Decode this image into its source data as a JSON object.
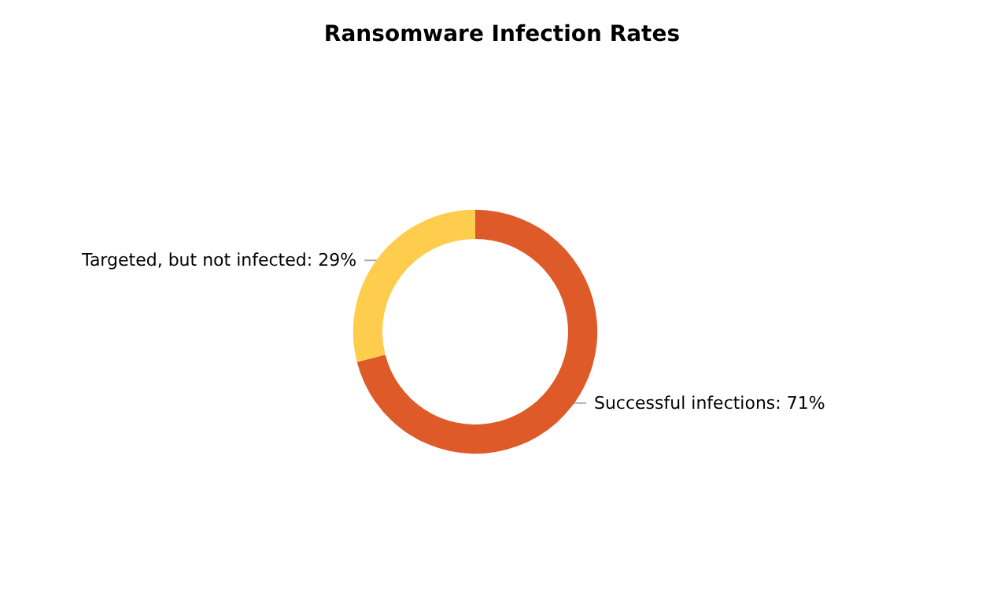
{
  "chart_data": {
    "type": "donut",
    "title": "Ransomware Infection Rates",
    "categories": [
      "Successful infections",
      "Targeted, but not infected"
    ],
    "values": [
      71,
      29
    ],
    "value_labels": [
      "71%",
      "29%"
    ],
    "colors": [
      "#df5a29",
      "#ffcd4d"
    ],
    "legend": false
  }
}
